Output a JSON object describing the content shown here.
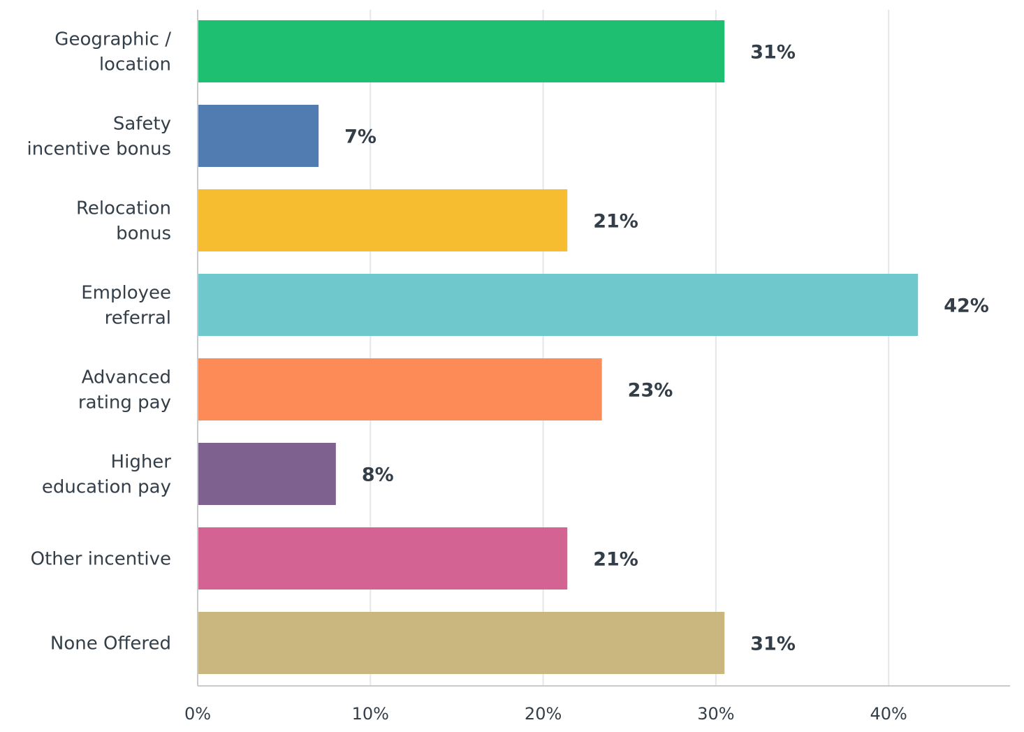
{
  "chart_data": {
    "type": "bar",
    "orientation": "horizontal",
    "categories": [
      [
        "Geographic /",
        "location"
      ],
      [
        "Safety",
        "incentive bonus"
      ],
      [
        "Relocation",
        "bonus"
      ],
      [
        "Employee",
        "referral"
      ],
      [
        "Advanced",
        "rating pay"
      ],
      [
        "Higher",
        "education pay"
      ],
      [
        "Other incentive"
      ],
      [
        "None Offered"
      ]
    ],
    "values": [
      30.5,
      7.0,
      21.4,
      41.7,
      23.4,
      8.0,
      21.4,
      30.5
    ],
    "value_labels": [
      "31%",
      "7%",
      "21%",
      "42%",
      "23%",
      "8%",
      "21%",
      "31%"
    ],
    "colors": [
      "#1fbf72",
      "#507cb2",
      "#f5bd2f",
      "#6fc8cb",
      "#fd8b58",
      "#7e618e",
      "#d26392",
      "#c9b77f"
    ],
    "xlim": [
      0,
      47
    ],
    "x_ticks": [
      0,
      10,
      20,
      30,
      40
    ],
    "x_tick_labels": [
      "0%",
      "10%",
      "20%",
      "30%",
      "40%"
    ],
    "grid": true,
    "title": "",
    "xlabel": "",
    "ylabel": ""
  }
}
